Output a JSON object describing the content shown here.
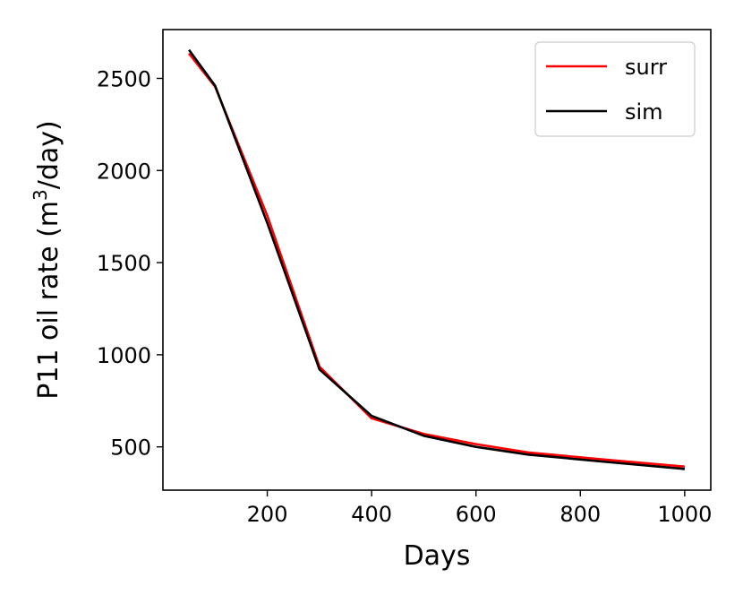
{
  "chart_data": {
    "type": "line",
    "xlabel": "Days",
    "ylabel_main": "P11 oil rate (m",
    "ylabel_sup": "3",
    "ylabel_tail": "/day)",
    "xlim": [
      0,
      1050
    ],
    "ylim": [
      265,
      2765
    ],
    "xticks": [
      200,
      400,
      600,
      800,
      1000
    ],
    "xtick_labels": [
      "200",
      "400",
      "600",
      "800",
      "1000"
    ],
    "yticks": [
      500,
      1000,
      1500,
      2000,
      2500
    ],
    "ytick_labels": [
      "500",
      "1000",
      "1500",
      "2000",
      "2500"
    ],
    "legend_position": "upper-right",
    "grid": false,
    "x": [
      50,
      100,
      200,
      300,
      400,
      500,
      600,
      700,
      850,
      1000
    ],
    "series": [
      {
        "name": "surr",
        "color": "#ff0000",
        "values": [
          2635,
          2455,
          1755,
          935,
          655,
          570,
          515,
          470,
          430,
          393
        ]
      },
      {
        "name": "sim",
        "color": "#000000",
        "values": [
          2655,
          2460,
          1715,
          920,
          668,
          560,
          500,
          458,
          418,
          380
        ]
      }
    ]
  }
}
